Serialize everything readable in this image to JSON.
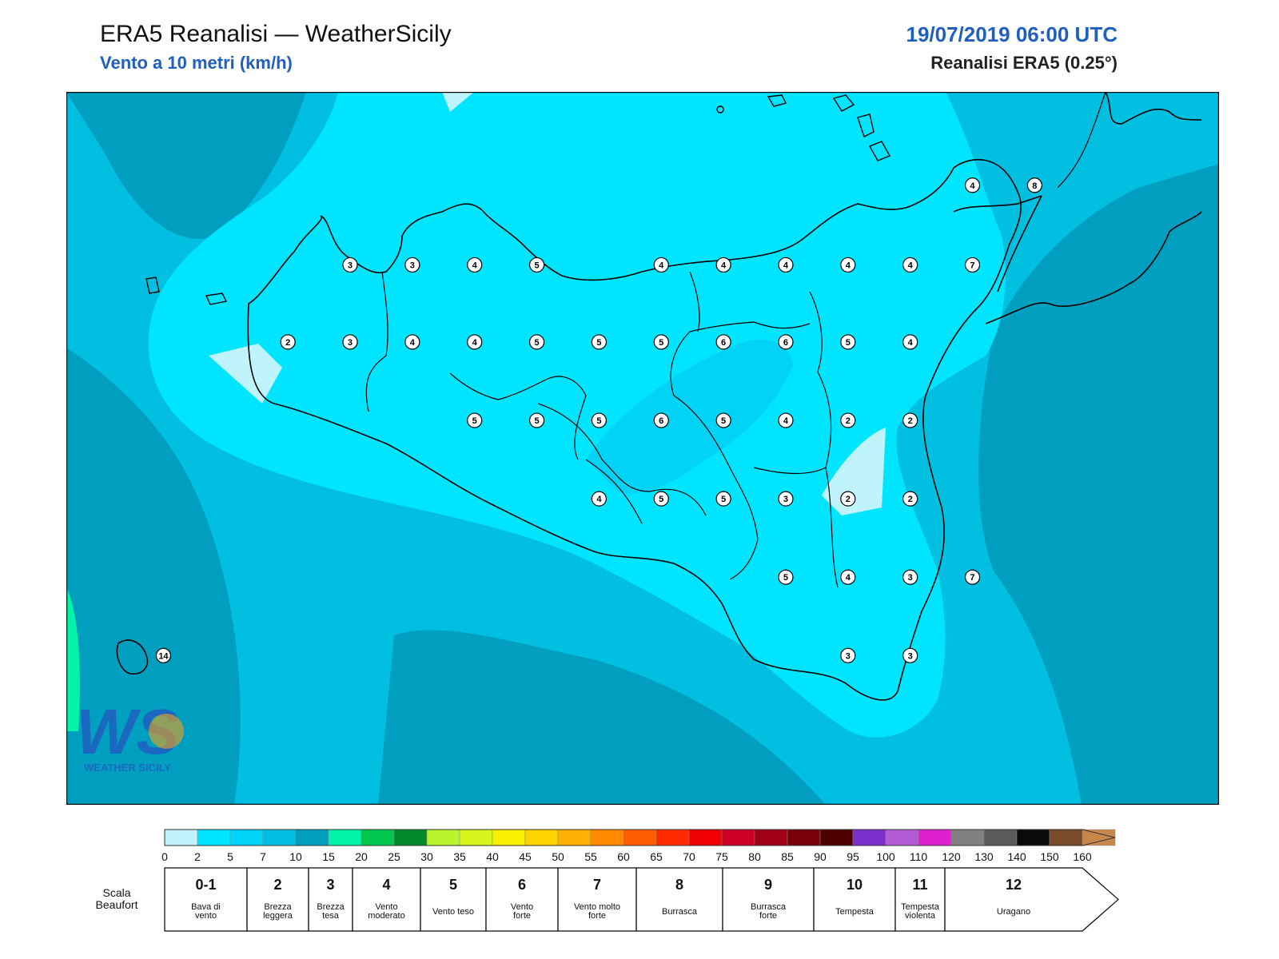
{
  "header": {
    "title": "ERA5 Reanalisi — WeatherSicily",
    "subtitle": "Vento a 10 metri (km/h)",
    "datetime": "19/07/2019 06:00 UTC",
    "source": "Reanalisi ERA5 (0.25°)"
  },
  "map": {
    "logo_text": "WEATHER SICILY",
    "logo_letters": "WS",
    "stations": [
      {
        "lon": 13.28,
        "lat": 38.32,
        "value": "3"
      },
      {
        "lon": 13.78,
        "lat": 38.32,
        "value": "3"
      },
      {
        "lon": 14.28,
        "lat": 38.32,
        "value": "4"
      },
      {
        "lon": 14.78,
        "lat": 38.32,
        "value": "5"
      },
      {
        "lon": 15.78,
        "lat": 38.32,
        "value": "4"
      },
      {
        "lon": 16.28,
        "lat": 38.32,
        "value": "4"
      },
      {
        "lon": 16.78,
        "lat": 38.32,
        "value": "4"
      },
      {
        "lon": 17.28,
        "lat": 38.32,
        "value": "4"
      },
      {
        "lon": 17.78,
        "lat": 38.32,
        "value": "4"
      },
      {
        "lon": 18.28,
        "lat": 38.32,
        "value": "7"
      },
      {
        "lon": 18.28,
        "lat": 38.96,
        "value": "4"
      },
      {
        "lon": 18.78,
        "lat": 38.96,
        "value": "8"
      },
      {
        "lon": 12.78,
        "lat": 37.7,
        "value": "2"
      },
      {
        "lon": 13.28,
        "lat": 37.7,
        "value": "3"
      },
      {
        "lon": 13.78,
        "lat": 37.7,
        "value": "4"
      },
      {
        "lon": 14.28,
        "lat": 37.7,
        "value": "4"
      },
      {
        "lon": 14.78,
        "lat": 37.7,
        "value": "5"
      },
      {
        "lon": 15.28,
        "lat": 37.7,
        "value": "5"
      },
      {
        "lon": 15.78,
        "lat": 37.7,
        "value": "5"
      },
      {
        "lon": 16.28,
        "lat": 37.7,
        "value": "6"
      },
      {
        "lon": 16.78,
        "lat": 37.7,
        "value": "6"
      },
      {
        "lon": 17.28,
        "lat": 37.7,
        "value": "5"
      },
      {
        "lon": 17.78,
        "lat": 37.7,
        "value": "4"
      },
      {
        "lon": 14.28,
        "lat": 37.07,
        "value": "5"
      },
      {
        "lon": 14.78,
        "lat": 37.07,
        "value": "5"
      },
      {
        "lon": 15.28,
        "lat": 37.07,
        "value": "5"
      },
      {
        "lon": 15.78,
        "lat": 37.07,
        "value": "6"
      },
      {
        "lon": 16.28,
        "lat": 37.07,
        "value": "5"
      },
      {
        "lon": 16.78,
        "lat": 37.07,
        "value": "4"
      },
      {
        "lon": 17.28,
        "lat": 37.07,
        "value": "2"
      },
      {
        "lon": 17.78,
        "lat": 37.07,
        "value": "2"
      },
      {
        "lon": 15.28,
        "lat": 36.44,
        "value": "4"
      },
      {
        "lon": 15.78,
        "lat": 36.44,
        "value": "5"
      },
      {
        "lon": 16.28,
        "lat": 36.44,
        "value": "5"
      },
      {
        "lon": 16.78,
        "lat": 36.44,
        "value": "3"
      },
      {
        "lon": 17.28,
        "lat": 36.44,
        "value": "2"
      },
      {
        "lon": 17.78,
        "lat": 36.44,
        "value": "2"
      },
      {
        "lon": 16.78,
        "lat": 35.81,
        "value": "5"
      },
      {
        "lon": 17.28,
        "lat": 35.81,
        "value": "4"
      },
      {
        "lon": 17.78,
        "lat": 35.81,
        "value": "3"
      },
      {
        "lon": 18.28,
        "lat": 35.81,
        "value": "7"
      },
      {
        "lon": 17.28,
        "lat": 35.18,
        "value": "3"
      },
      {
        "lon": 17.78,
        "lat": 35.18,
        "value": "3"
      },
      {
        "lon": 11.78,
        "lat": 35.18,
        "value": "14"
      }
    ]
  },
  "colorbar": {
    "ticks": [
      "0",
      "2",
      "5",
      "7",
      "10",
      "15",
      "20",
      "25",
      "30",
      "35",
      "40",
      "45",
      "50",
      "55",
      "60",
      "65",
      "70",
      "75",
      "80",
      "85",
      "90",
      "95",
      "100",
      "110",
      "120",
      "130",
      "140",
      "150",
      "160"
    ],
    "colors": [
      "#bff4fc",
      "#00e5ff",
      "#00d3f5",
      "#00bfe0",
      "#009fbf",
      "#00f5a8",
      "#00c84f",
      "#00882a",
      "#b8f52e",
      "#d6f51c",
      "#f7f000",
      "#ffd300",
      "#ffb000",
      "#ff8a00",
      "#ff5e00",
      "#ff2b00",
      "#f00000",
      "#cc0022",
      "#a00015",
      "#7a000b",
      "#4d0000",
      "#7b2fcc",
      "#b35ad6",
      "#e01fcf",
      "#808080",
      "#5a5a5a",
      "#0a0a0a",
      "#7a4a2a",
      "#c8874d"
    ]
  },
  "beaufort": {
    "label_line1": "Scala",
    "label_line2": "Beaufort",
    "classes": [
      {
        "number": "0-1",
        "desc": [
          "Bava di",
          "vento"
        ]
      },
      {
        "number": "2",
        "desc": [
          "Brezza",
          "leggera"
        ]
      },
      {
        "number": "3",
        "desc": [
          "Brezza",
          "tesa"
        ]
      },
      {
        "number": "4",
        "desc": [
          "Vento",
          "moderato"
        ]
      },
      {
        "number": "5",
        "desc": [
          "Vento teso"
        ]
      },
      {
        "number": "6",
        "desc": [
          "Vento",
          "forte"
        ]
      },
      {
        "number": "7",
        "desc": [
          "Vento molto",
          "forte"
        ]
      },
      {
        "number": "8",
        "desc": [
          "Burrasca"
        ]
      },
      {
        "number": "9",
        "desc": [
          "Burrasca",
          "forte"
        ]
      },
      {
        "number": "10",
        "desc": [
          "Tempesta"
        ]
      },
      {
        "number": "11",
        "desc": [
          "Tempesta",
          "violenta"
        ]
      },
      {
        "number": "12",
        "desc": [
          "Uragano"
        ]
      }
    ]
  }
}
